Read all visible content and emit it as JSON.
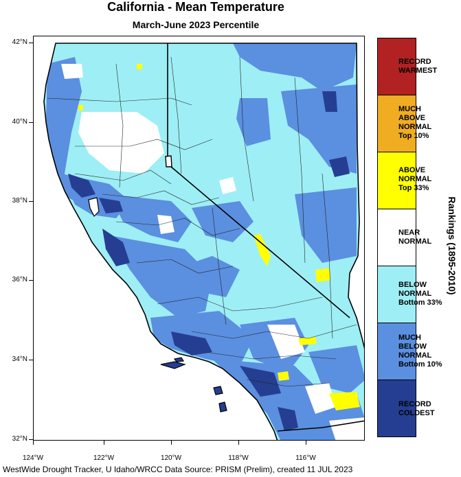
{
  "title": "California - Mean Temperature",
  "subtitle": "March-June 2023 Percentile",
  "latitude_labels": [
    "42°N",
    "40°N",
    "38°N",
    "36°N",
    "34°N",
    "32°N"
  ],
  "longitude_labels": [
    "124°W",
    "122°W",
    "120°W",
    "118°W",
    "116°W"
  ],
  "legend": {
    "axis_title": "Rankings (1895-2010)",
    "categories": [
      {
        "name": "record-warmest",
        "lines": [
          "RECORD",
          "WARMEST"
        ],
        "color": "#b22222"
      },
      {
        "name": "much-above-normal",
        "lines": [
          "MUCH",
          "ABOVE",
          "NORMAL",
          "Top 10%"
        ],
        "color": "#f0ad22"
      },
      {
        "name": "above-normal",
        "lines": [
          "ABOVE",
          "NORMAL",
          "Top 33%"
        ],
        "color": "#ffff00"
      },
      {
        "name": "near-normal",
        "lines": [
          "NEAR",
          "NORMAL"
        ],
        "color": "#ffffff"
      },
      {
        "name": "below-normal",
        "lines": [
          "BELOW",
          "NORMAL",
          "Bottom 33%"
        ],
        "color": "#9eeef5"
      },
      {
        "name": "much-below-normal",
        "lines": [
          "MUCH",
          "BELOW",
          "NORMAL",
          "Bottom 10%"
        ],
        "color": "#5b8fe0"
      },
      {
        "name": "record-coldest",
        "lines": [
          "RECORD",
          "COLDEST"
        ],
        "color": "#253e91"
      }
    ]
  },
  "footer": "WestWide Drought Tracker, U Idaho/WRCC Data Source: PRISM (Prelim), created 11 JUL 2023"
}
